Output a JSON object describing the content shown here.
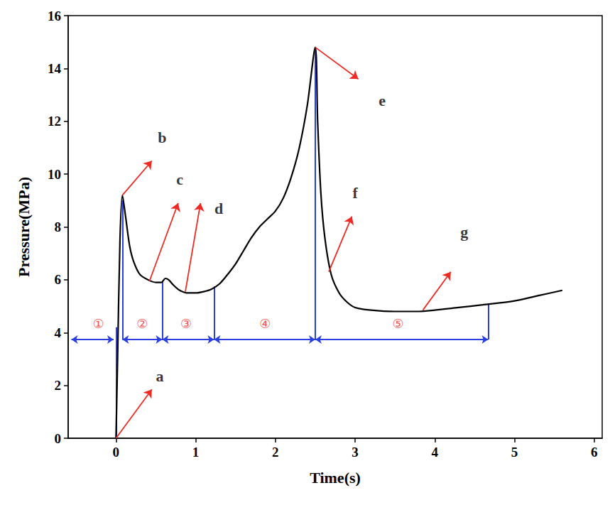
{
  "chart_data": {
    "type": "line",
    "x_label": "Time(s)",
    "y_label": "Pressure(MPa)",
    "xlim": [
      -0.6,
      6.1
    ],
    "ylim": [
      0,
      16
    ],
    "xticks": [
      0,
      1,
      2,
      3,
      4,
      5,
      6
    ],
    "yticks": [
      0,
      2,
      4,
      6,
      8,
      10,
      12,
      14,
      16
    ],
    "grid": false,
    "color": "#000000",
    "x": [
      0,
      0.02,
      0.05,
      0.08,
      0.12,
      0.17,
      0.22,
      0.3,
      0.4,
      0.5,
      0.57,
      0.62,
      0.66,
      0.72,
      0.8,
      0.9,
      1.0,
      1.1,
      1.2,
      1.3,
      1.4,
      1.5,
      1.6,
      1.7,
      1.8,
      1.9,
      2.0,
      2.1,
      2.2,
      2.3,
      2.4,
      2.5,
      2.53,
      2.57,
      2.62,
      2.7,
      2.8,
      2.9,
      3.0,
      3.2,
      3.5,
      3.8,
      4.0,
      4.3,
      4.6,
      5.0,
      5.3,
      5.6
    ],
    "values": [
      0,
      3.0,
      7.5,
      9.2,
      8.4,
      7.3,
      6.7,
      6.2,
      6.0,
      5.9,
      5.9,
      6.05,
      6.0,
      5.8,
      5.6,
      5.5,
      5.5,
      5.55,
      5.65,
      5.85,
      6.2,
      6.6,
      7.1,
      7.6,
      8.0,
      8.3,
      8.6,
      9.1,
      9.9,
      11.0,
      12.6,
      14.8,
      12.0,
      9.3,
      7.6,
      6.2,
      5.5,
      5.15,
      4.95,
      4.85,
      4.8,
      4.8,
      4.85,
      4.95,
      5.05,
      5.2,
      5.4,
      5.6
    ],
    "annotations": [
      {
        "text": "a",
        "xy": [
          0.0,
          0.0
        ],
        "arrow_to": [
          0.45,
          1.85
        ],
        "text_xy": [
          0.55,
          2.35
        ],
        "color": "#ee2a24"
      },
      {
        "text": "b",
        "xy": [
          0.08,
          9.2
        ],
        "arrow_to": [
          0.45,
          10.5
        ],
        "text_xy": [
          0.58,
          11.4
        ],
        "color": "#ee2a24"
      },
      {
        "text": "c",
        "xy": [
          0.42,
          5.95
        ],
        "arrow_to": [
          0.78,
          8.9
        ],
        "text_xy": [
          0.8,
          9.8
        ],
        "color": "#ee2a24"
      },
      {
        "text": "d",
        "xy": [
          0.87,
          5.55
        ],
        "arrow_to": [
          1.06,
          8.9
        ],
        "text_xy": [
          1.29,
          8.7
        ],
        "color": "#ee2a24"
      },
      {
        "text": "e",
        "xy": [
          2.5,
          14.8
        ],
        "arrow_to": [
          3.04,
          13.6
        ],
        "text_xy": [
          3.34,
          12.8
        ],
        "color": "#ee2a24"
      },
      {
        "text": "f",
        "xy": [
          2.67,
          6.3
        ],
        "arrow_to": [
          2.96,
          8.4
        ],
        "text_xy": [
          3.0,
          9.3
        ],
        "color": "#ee2a24"
      },
      {
        "text": "g",
        "xy": [
          3.85,
          4.85
        ],
        "arrow_to": [
          4.2,
          6.3
        ],
        "text_xy": [
          4.37,
          7.8
        ],
        "color": "#ee2a24"
      }
    ],
    "stage_y": 3.74,
    "stage_label_y": 4.35,
    "stage_color": "#2a3fe0",
    "stage_label_color": "#ee2a24",
    "stages": [
      {
        "label": "①",
        "start": -0.56,
        "end": -0.03,
        "label_x": -0.22
      },
      {
        "label": "②",
        "start": 0.08,
        "end": 0.58,
        "label_x": 0.33
      },
      {
        "label": "③",
        "start": 0.58,
        "end": 1.23,
        "label_x": 0.88
      },
      {
        "label": "④",
        "start": 1.23,
        "end": 2.5,
        "label_x": 1.87
      },
      {
        "label": "⑤",
        "start": 2.5,
        "end": 4.67,
        "label_x": 3.54
      }
    ],
    "boundaries": [
      {
        "x": 0.0,
        "y": [
          0,
          4.2
        ]
      },
      {
        "x": 0.08,
        "y": [
          3.74,
          9.0
        ]
      },
      {
        "x": 0.58,
        "y": [
          3.74,
          5.95
        ]
      },
      {
        "x": 1.23,
        "y": [
          3.74,
          5.75
        ]
      },
      {
        "x": 2.5,
        "y": [
          3.74,
          14.8
        ]
      },
      {
        "x": 4.67,
        "y": [
          3.74,
          5.1
        ]
      }
    ]
  }
}
